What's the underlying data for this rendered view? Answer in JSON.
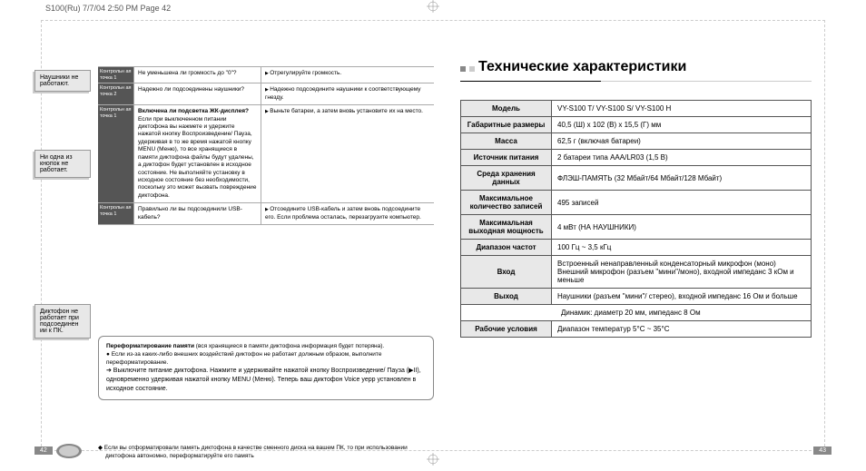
{
  "header": "S100(Ru)  7/7/04 2:50 PM  Page 42",
  "left": {
    "problems": [
      {
        "label": "Наушники не работают."
      },
      {
        "label": "Ни одна из кнопок не работает."
      },
      {
        "label": "Диктофон не работает при подсоединен ии к ПК."
      }
    ],
    "rows": [
      {
        "check": "Контрольн ая точка 1",
        "q": "Не уменьшена ли громкость до \"0\"?",
        "a": "Отрегулируйте громкость."
      },
      {
        "check": "Контрольн ая точка 2",
        "q": "Надежно ли подсоединены наушники?",
        "a": "Надежно подсоедините наушники к соответствующему гнезду."
      },
      {
        "check": "Контрольн ая точка 1",
        "q_bold": "Включена ли подсветка ЖК-дисплея?",
        "q_rest": "Если при выключенном питании диктофона вы нажмете и удержите нажатой кнопку Воспроизведение/ Пауза, удерживая в то же время нажатой кнопку MENU (Меню), то все хранящиеся в памяти диктофона файлы будут удалены, а диктофон будет установлен в исходное состояние. Не выполняйте установку в исходное состояние без необходимости, поскольку это может вызвать повреждение диктофона.",
        "a": "Выньте батареи, а затем вновь установите их на место."
      },
      {
        "check": "Контрольн ая точка 1",
        "q": "Правильно ли вы подсоединили USB-кабель?",
        "a": "Отсоедините USB-кабель и затем вновь подсоедините его. Если проблема осталась, перезагрузите компьютер."
      }
    ],
    "reformat": {
      "title": "Переформатирование памяти",
      "intro": " (вся хранящиеся в памяти диктофона информация будет потеряна).",
      "b1": "● Если из-за каких-либо внешних воздействий диктофон не работает должным образом, выполните переформатирование.",
      "b2": "➔ Выключите питание диктофона. Нажмите и удерживайте нажатой кнопку Воспроизведение/ Пауза (▶II), одновременно удерживая нажатой кнопку MENU (Меню). Теперь ваш диктофон Voice yepp установлен в исходное состояние."
    },
    "footnote": "◆ Если вы отформатировали память диктофона в качестве сменного диска на вашем ПК, то при использовании диктофона автономно, переформатируйте его память",
    "pagenum": "42"
  },
  "right": {
    "title": "Технические характеристики",
    "specs": [
      {
        "k": "Модель",
        "v": "VY-S100 T/ VY-S100 S/ VY-S100 H"
      },
      {
        "k": "Габаритные размеры",
        "v": "40,5 (Ш) x 102 (В) x 15,5 (Г) мм"
      },
      {
        "k": "Масса",
        "v": "62,5 г (включая батареи)"
      },
      {
        "k": "Источник питания",
        "v": "2 батареи типа AAA/LR03 (1,5 В)"
      },
      {
        "k": "Среда хранения данных",
        "v": "ФЛЭШ-ПАМЯТЬ (32 Мбайт/64 Мбайт/128 Мбайт)"
      },
      {
        "k": "Максимальное количество записей",
        "v": "495 записей"
      },
      {
        "k": "Максимальная выходная мощность",
        "v": "4 мВт (НА НАУШНИКИ)"
      },
      {
        "k": "Диапазон частот",
        "v": "100 Гц ~ 3,5 кГц"
      },
      {
        "k": "Вход",
        "v": "Встроенный ненаправленный конденсаторный микрофон (моно)\nВнешний микрофон (разъем \"мини\"/моно), входной импеданс 3 кОм и меньше"
      },
      {
        "k": "Выход",
        "v": "Наушники (разъем \"мини\"/ стерео), входной импеданс 16 Ом и больше"
      },
      {
        "k": "",
        "v": "Динамик: диаметр 20 мм, импеданс 8 Ом"
      },
      {
        "k": "Рабочие условия",
        "v": "Диапазон температур 5°C ~ 35°C"
      }
    ],
    "pagenum": "43"
  }
}
